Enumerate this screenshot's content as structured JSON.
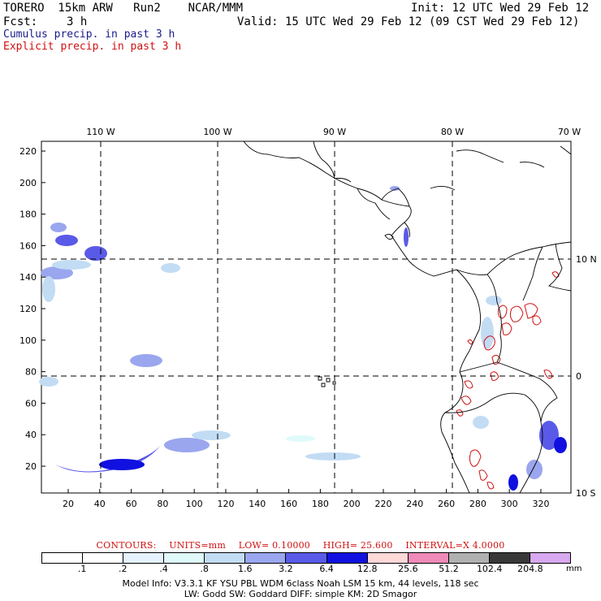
{
  "header": {
    "model_line": "TORERO  15km ARW   Run2    NCAR/MMM",
    "init": "Init: 12 UTC Wed 29 Feb 12",
    "fcst_label": "Fcst:",
    "fcst_value": "3 h",
    "valid": "Valid: 15 UTC Wed 29 Feb 12 (09 CST Wed 29 Feb 12)",
    "legend_cumulus": "Cumulus precip. in past 3 h",
    "legend_explicit": "Explicit precip. in past 3 h",
    "cumulus_color": "#1a1a8c",
    "explicit_color": "#d01010"
  },
  "map": {
    "longitude_labels": [
      "110 W",
      "100 W",
      "90 W",
      "80 W",
      "70 W"
    ],
    "latitude_labels": [
      "10 N",
      "0",
      "10 S"
    ],
    "x_ticks": [
      "20",
      "40",
      "60",
      "80",
      "100",
      "120",
      "140",
      "160",
      "180",
      "200",
      "220",
      "240",
      "260",
      "280",
      "300",
      "320"
    ],
    "y_ticks": [
      "20",
      "40",
      "60",
      "80",
      "100",
      "120",
      "140",
      "160",
      "180",
      "200",
      "220"
    ]
  },
  "contours": {
    "label": "CONTOURS:",
    "units": "UNITS=mm",
    "low": "LOW= 0.10000",
    "high": "HIGH= 25.600",
    "interval": "INTERVAL=X 4.0000"
  },
  "colorbar": {
    "unit": "mm",
    "labels": [
      ".1",
      ".2",
      ".4",
      ".8",
      "1.6",
      "3.2",
      "6.4",
      "12.8",
      "25.6",
      "51.2",
      "102.4",
      "204.8"
    ],
    "colors": [
      "#ffffff",
      "#ffffff",
      "#e6f2ff",
      "#e0fafa",
      "#c2dcf4",
      "#9aa6ee",
      "#5a5ae8",
      "#1010e0",
      "#ffd8d8",
      "#f08ab8",
      "#b0b0b0",
      "#383838",
      "#d8a8f0"
    ]
  },
  "footer": {
    "line1": "Model Info: V3.3.1    KF      YSU PBL   WDM 6class  Noah LSM  15 km,    44 levels,  118 sec",
    "line2": "LW: Godd SW: Goddard DIFF: simple KM: 2D Smagor"
  }
}
